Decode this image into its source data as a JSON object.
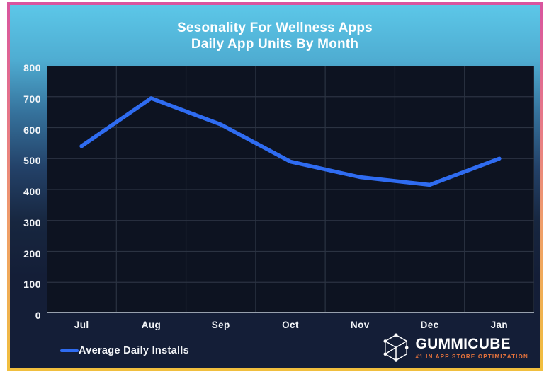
{
  "title": {
    "line1": "Sesonality For Wellness Apps",
    "line2": "Daily App Units By Month"
  },
  "chart_data": {
    "type": "line",
    "title": "Sesonality For Wellness Apps — Daily App Units By Month",
    "categories": [
      "Jul",
      "Aug",
      "Sep",
      "Oct",
      "Nov",
      "Dec",
      "Jan"
    ],
    "series": [
      {
        "name": "Average Daily Installs",
        "values": [
          540,
          695,
          610,
          490,
          440,
          415,
          500
        ]
      }
    ],
    "xlabel": "",
    "ylabel": "",
    "ylim": [
      0,
      800
    ],
    "ytick_step": 100,
    "yticks": [
      0,
      100,
      200,
      300,
      400,
      500,
      600,
      700,
      800
    ],
    "grid": true,
    "legend_position": "bottom-left",
    "line_color": "#2f6cf1"
  },
  "legend": {
    "label": "Average Daily Installs"
  },
  "branding": {
    "name": "GUMMICUBE",
    "tagline": "#1 IN APP STORE OPTIMIZATION"
  },
  "colors": {
    "line": "#2f6cf1",
    "plot_background": "#0d1321",
    "grid": "#2b3342",
    "axis_line": "#97a0ad",
    "background_top": "#5cc7e8",
    "background_bottom": "#141e37",
    "border_top": "#d9559e",
    "border_bottom": "#f1bf3e",
    "text": "#ffffff",
    "tagline": "#e8743c"
  }
}
